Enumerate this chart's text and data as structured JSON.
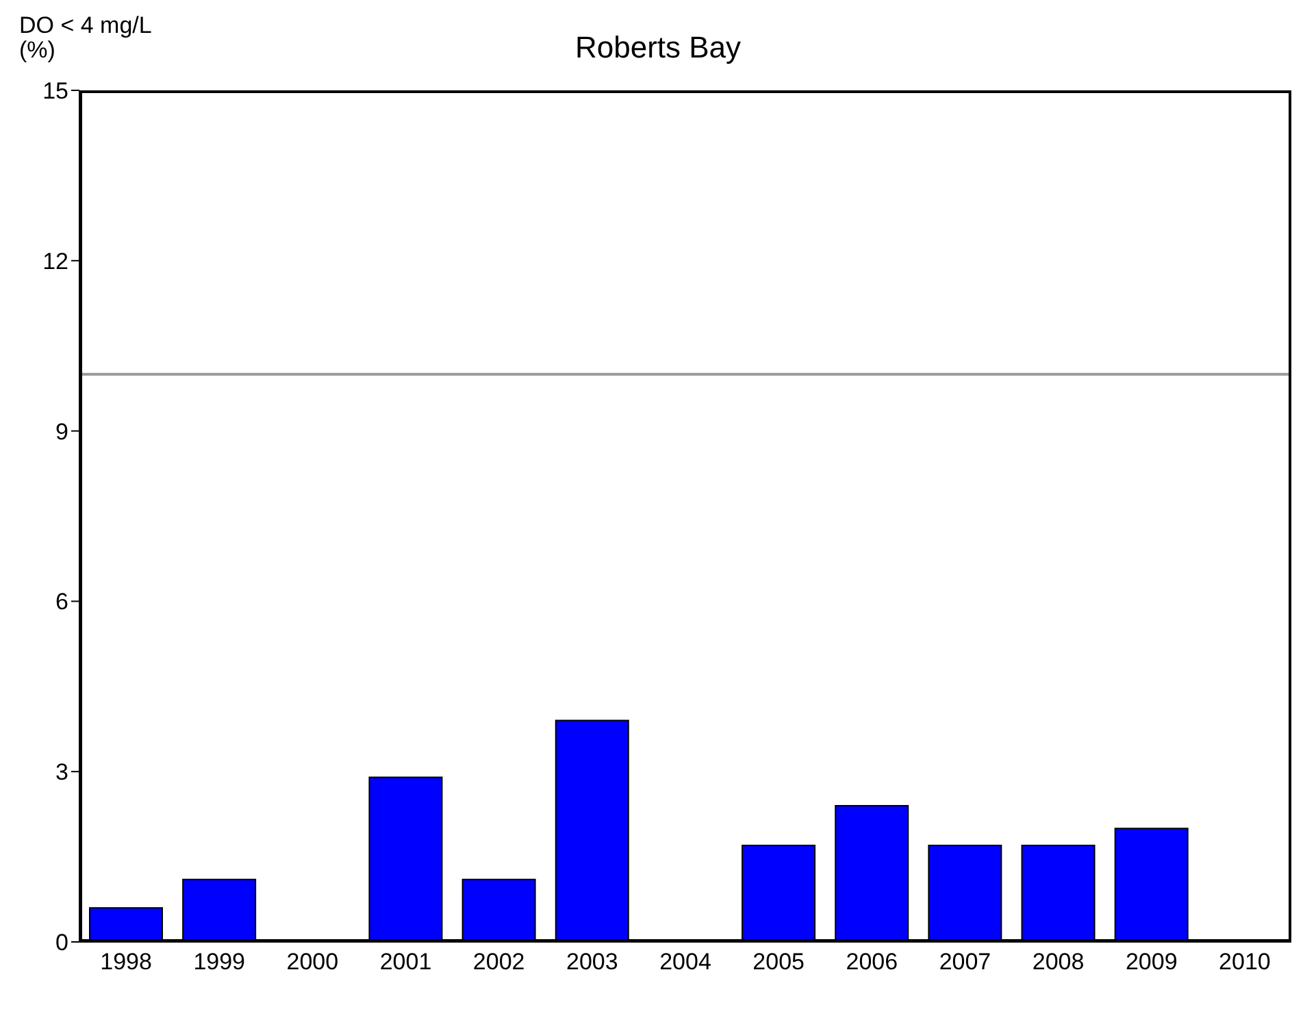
{
  "chart_data": {
    "type": "bar",
    "title": "Roberts Bay",
    "ylabel": "DO < 4 mg/L (%)",
    "categories": [
      "1998",
      "1999",
      "2000",
      "2001",
      "2002",
      "2003",
      "2004",
      "2005",
      "2006",
      "2007",
      "2008",
      "2009",
      "2010"
    ],
    "values": [
      0.6,
      1.1,
      null,
      2.9,
      1.1,
      3.9,
      null,
      1.7,
      2.4,
      1.7,
      1.7,
      2.0,
      null
    ],
    "color": "#0000ff",
    "ylim": [
      0,
      15
    ],
    "yticks": [
      0,
      3,
      6,
      9,
      12,
      15
    ],
    "grid": false,
    "ref_lines": [
      {
        "axis": "y",
        "value": 10,
        "color": "#999999"
      }
    ]
  }
}
